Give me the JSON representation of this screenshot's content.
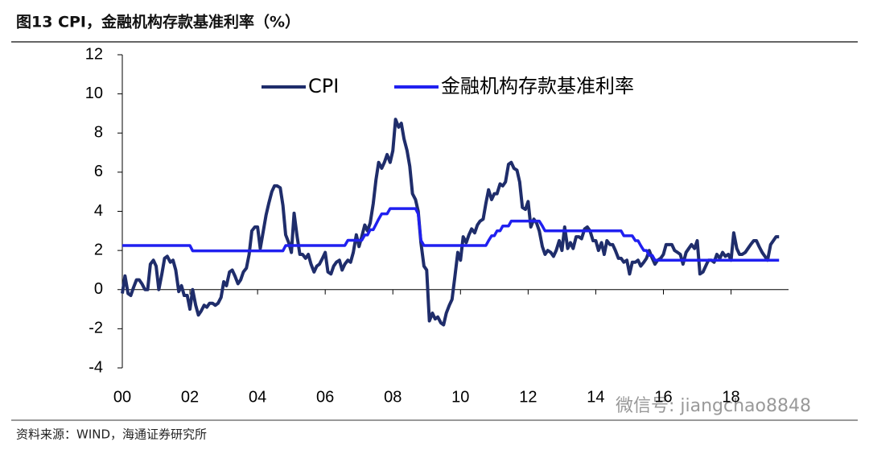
{
  "chart_data": {
    "type": "line",
    "title": "图13 CPI，金融机构存款基准利率（%）",
    "source": "资料来源：WIND，海通证券研究所",
    "watermark": "微信号: jiangchao8848",
    "x": [
      2000,
      2000.08,
      2000.17,
      2000.25,
      2000.33,
      2000.42,
      2000.5,
      2000.58,
      2000.67,
      2000.75,
      2000.83,
      2000.92,
      2001,
      2001.08,
      2001.17,
      2001.25,
      2001.33,
      2001.42,
      2001.5,
      2001.58,
      2001.67,
      2001.75,
      2001.83,
      2001.92,
      2002,
      2002.08,
      2002.17,
      2002.25,
      2002.33,
      2002.42,
      2002.5,
      2002.58,
      2002.67,
      2002.75,
      2002.83,
      2002.92,
      2003,
      2003.08,
      2003.17,
      2003.25,
      2003.33,
      2003.42,
      2003.5,
      2003.58,
      2003.67,
      2003.75,
      2003.83,
      2003.92,
      2004,
      2004.08,
      2004.17,
      2004.25,
      2004.33,
      2004.42,
      2004.5,
      2004.58,
      2004.67,
      2004.75,
      2004.83,
      2004.92,
      2005,
      2005.08,
      2005.17,
      2005.25,
      2005.33,
      2005.42,
      2005.5,
      2005.58,
      2005.67,
      2005.75,
      2005.83,
      2005.92,
      2006,
      2006.08,
      2006.17,
      2006.25,
      2006.33,
      2006.42,
      2006.5,
      2006.58,
      2006.67,
      2006.75,
      2006.83,
      2006.92,
      2007,
      2007.08,
      2007.17,
      2007.25,
      2007.33,
      2007.42,
      2007.5,
      2007.58,
      2007.67,
      2007.75,
      2007.83,
      2007.92,
      2008,
      2008.08,
      2008.17,
      2008.25,
      2008.33,
      2008.42,
      2008.5,
      2008.58,
      2008.67,
      2008.75,
      2008.83,
      2008.92,
      2009,
      2009.08,
      2009.17,
      2009.25,
      2009.33,
      2009.42,
      2009.5,
      2009.58,
      2009.67,
      2009.75,
      2009.83,
      2009.92,
      2010,
      2010.08,
      2010.17,
      2010.25,
      2010.33,
      2010.42,
      2010.5,
      2010.58,
      2010.67,
      2010.75,
      2010.83,
      2010.92,
      2011,
      2011.08,
      2011.17,
      2011.25,
      2011.33,
      2011.42,
      2011.5,
      2011.58,
      2011.67,
      2011.75,
      2011.83,
      2011.92,
      2012,
      2012.08,
      2012.17,
      2012.25,
      2012.33,
      2012.42,
      2012.5,
      2012.58,
      2012.67,
      2012.75,
      2012.83,
      2012.92,
      2013,
      2013.08,
      2013.17,
      2013.25,
      2013.33,
      2013.42,
      2013.5,
      2013.58,
      2013.67,
      2013.75,
      2013.83,
      2013.92,
      2014,
      2014.08,
      2014.17,
      2014.25,
      2014.33,
      2014.42,
      2014.5,
      2014.58,
      2014.67,
      2014.75,
      2014.83,
      2014.92,
      2015,
      2015.08,
      2015.17,
      2015.25,
      2015.33,
      2015.42,
      2015.5,
      2015.58,
      2015.67,
      2015.75,
      2015.83,
      2015.92,
      2016,
      2016.08,
      2016.17,
      2016.25,
      2016.33,
      2016.42,
      2016.5,
      2016.58,
      2016.67,
      2016.75,
      2016.83,
      2016.92,
      2017,
      2017.08,
      2017.17,
      2017.25,
      2017.33,
      2017.42,
      2017.5,
      2017.58,
      2017.67,
      2017.75,
      2017.83,
      2017.92,
      2018,
      2018.08,
      2018.17,
      2018.25,
      2018.33,
      2018.42,
      2018.5,
      2018.58,
      2018.67,
      2018.75,
      2018.83,
      2018.92,
      2019,
      2019.08,
      2019.17,
      2019.25,
      2019.33,
      2019.42
    ],
    "series": [
      {
        "name": "CPI",
        "color": "#1f2d6b",
        "values": [
          -0.2,
          0.7,
          -0.2,
          -0.3,
          0.1,
          0.5,
          0.5,
          0.3,
          0,
          0,
          1.3,
          1.5,
          1.2,
          0,
          0.8,
          1.6,
          1.7,
          1.4,
          1.5,
          1,
          -0.1,
          0.2,
          -0.3,
          -0.3,
          -1,
          0,
          -0.8,
          -1.3,
          -1.1,
          -0.8,
          -0.9,
          -0.7,
          -0.7,
          -0.8,
          -0.7,
          -0.4,
          0.4,
          0.2,
          0.9,
          1,
          0.7,
          0.3,
          0.5,
          0.9,
          1.1,
          1.8,
          3,
          3.2,
          3.2,
          2.1,
          3,
          3.8,
          4.4,
          5,
          5.3,
          5.3,
          5.2,
          4.3,
          2.8,
          2.4,
          1.9,
          3.9,
          2.7,
          1.8,
          1.8,
          1.6,
          1.8,
          1.3,
          0.9,
          1.2,
          1.3,
          1.6,
          1.9,
          0.9,
          0.8,
          1.2,
          1.4,
          1.5,
          1,
          1.3,
          1.5,
          1.4,
          1.9,
          2.8,
          2.2,
          2.7,
          3.3,
          3,
          3.4,
          4.4,
          5.6,
          6.5,
          6.2,
          6.5,
          6.9,
          6.5,
          7.1,
          8.7,
          8.3,
          8.5,
          7.7,
          7.1,
          6.3,
          4.9,
          4.6,
          4,
          2.4,
          1.2,
          1,
          -1.6,
          -1.2,
          -1.5,
          -1.4,
          -1.7,
          -1.8,
          -1.2,
          -0.8,
          -0.5,
          0.6,
          1.9,
          1.5,
          2.7,
          2.4,
          2.8,
          3.1,
          2.9,
          3.3,
          3.5,
          3.6,
          4.4,
          5.1,
          4.6,
          4.9,
          4.9,
          5.4,
          5.3,
          5.5,
          6.4,
          6.5,
          6.2,
          6.1,
          5.5,
          4.2,
          4.1,
          4.5,
          3.2,
          3.6,
          3.4,
          3,
          2.2,
          1.8,
          2,
          1.9,
          1.7,
          2,
          2.5,
          2,
          3.2,
          2.1,
          2.4,
          2.1,
          2.7,
          2.7,
          2.6,
          3.1,
          3.2,
          3,
          2.5,
          2.5,
          2,
          2.4,
          1.8,
          2.5,
          2.3,
          2.3,
          2,
          1.6,
          1.6,
          1.4,
          1.5,
          0.8,
          1.4,
          1.4,
          1.5,
          1.2,
          1.4,
          1.6,
          2,
          1.6,
          1.3,
          1.5,
          1.6,
          1.8,
          2.3,
          2.3,
          2.3,
          2,
          1.9,
          1.8,
          1.3,
          1.9,
          2.1,
          2.3,
          2.1,
          2.5,
          0.8,
          0.9,
          1.2,
          1.5,
          1.5,
          1.4,
          1.8,
          1.6,
          1.9,
          1.7,
          1.8,
          1.5,
          2.9,
          2.1,
          1.8,
          1.8,
          1.9,
          2.1,
          2.3,
          2.5,
          2.5,
          2.2,
          1.9,
          1.7,
          1.5,
          2.3,
          2.5,
          2.7,
          2.7
        ]
      },
      {
        "name": "金融机构存款基准利率",
        "color": "#2020f0",
        "values": [
          2.25,
          2.25,
          2.25,
          2.25,
          2.25,
          2.25,
          2.25,
          2.25,
          2.25,
          2.25,
          2.25,
          2.25,
          2.25,
          2.25,
          2.25,
          2.25,
          2.25,
          2.25,
          2.25,
          2.25,
          2.25,
          2.25,
          2.25,
          2.25,
          2.25,
          1.98,
          1.98,
          1.98,
          1.98,
          1.98,
          1.98,
          1.98,
          1.98,
          1.98,
          1.98,
          1.98,
          1.98,
          1.98,
          1.98,
          1.98,
          1.98,
          1.98,
          1.98,
          1.98,
          1.98,
          1.98,
          1.98,
          1.98,
          1.98,
          1.98,
          1.98,
          1.98,
          1.98,
          1.98,
          1.98,
          1.98,
          1.98,
          1.98,
          2.25,
          2.25,
          2.25,
          2.25,
          2.25,
          2.25,
          2.25,
          2.25,
          2.25,
          2.25,
          2.25,
          2.25,
          2.25,
          2.25,
          2.25,
          2.25,
          2.25,
          2.25,
          2.25,
          2.25,
          2.25,
          2.25,
          2.52,
          2.52,
          2.52,
          2.52,
          2.52,
          2.52,
          2.79,
          2.79,
          3.06,
          3.06,
          3.33,
          3.6,
          3.87,
          3.87,
          3.87,
          4.14,
          4.14,
          4.14,
          4.14,
          4.14,
          4.14,
          4.14,
          4.14,
          4.14,
          4.14,
          3.87,
          2.52,
          2.25,
          2.25,
          2.25,
          2.25,
          2.25,
          2.25,
          2.25,
          2.25,
          2.25,
          2.25,
          2.25,
          2.25,
          2.25,
          2.25,
          2.25,
          2.25,
          2.25,
          2.25,
          2.25,
          2.25,
          2.25,
          2.25,
          2.25,
          2.5,
          2.75,
          2.75,
          3,
          3,
          3.25,
          3.25,
          3.25,
          3.5,
          3.5,
          3.5,
          3.5,
          3.5,
          3.5,
          3.5,
          3.5,
          3.5,
          3.5,
          3.5,
          3.25,
          3,
          3,
          3,
          3,
          3,
          3,
          3,
          3,
          3,
          3,
          3,
          3,
          3,
          3,
          3,
          3,
          3,
          3,
          3,
          3,
          3,
          3,
          3,
          3,
          3,
          3,
          3,
          3,
          2.75,
          2.75,
          2.75,
          2.75,
          2.5,
          2.5,
          2.25,
          2,
          2,
          1.75,
          1.75,
          1.5,
          1.5,
          1.5,
          1.5,
          1.5,
          1.5,
          1.5,
          1.5,
          1.5,
          1.5,
          1.5,
          1.5,
          1.5,
          1.5,
          1.5,
          1.5,
          1.5,
          1.5,
          1.5,
          1.5,
          1.5,
          1.5,
          1.5,
          1.5,
          1.5,
          1.5,
          1.5,
          1.5,
          1.5,
          1.5,
          1.5,
          1.5,
          1.5,
          1.5,
          1.5,
          1.5,
          1.5,
          1.5,
          1.5,
          1.5,
          1.5,
          1.5,
          1.5,
          1.5,
          1.5
        ]
      }
    ],
    "xlim": [
      2000,
      2019.7
    ],
    "xticks": [
      {
        "value": 2000,
        "label": "00"
      },
      {
        "value": 2002,
        "label": "02"
      },
      {
        "value": 2004,
        "label": "04"
      },
      {
        "value": 2006,
        "label": "06"
      },
      {
        "value": 2008,
        "label": "08"
      },
      {
        "value": 2010,
        "label": "10"
      },
      {
        "value": 2012,
        "label": "12"
      },
      {
        "value": 2014,
        "label": "14"
      },
      {
        "value": 2016,
        "label": "16"
      },
      {
        "value": 2018,
        "label": "18"
      }
    ],
    "ylim": [
      -4,
      12
    ],
    "yticks": [
      -4,
      -2,
      0,
      2,
      4,
      6,
      8,
      10,
      12
    ],
    "grid": false
  }
}
